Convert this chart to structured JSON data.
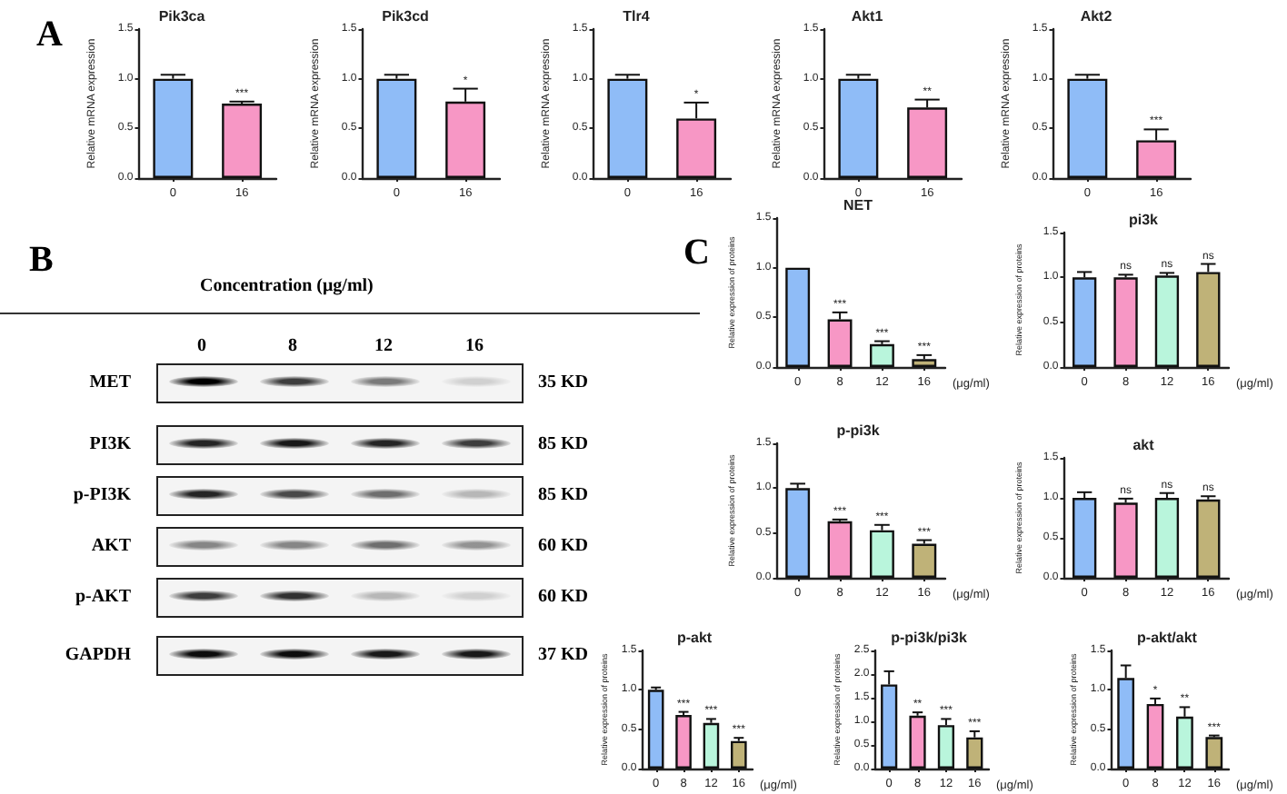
{
  "chart_data": [
    {
      "type": "bar",
      "title": "Pik3ca",
      "ylabel": "Relative mRNA expression",
      "categories": [
        "0",
        "16"
      ],
      "values": [
        1.0,
        0.75
      ],
      "colors": [
        "#8fbcf7",
        "#f797c5"
      ],
      "errors": [
        0.04,
        0.02
      ],
      "ylim": [
        0,
        1.5
      ],
      "yticks": [
        {
          "value": 0,
          "label": "0.0"
        },
        {
          "value": 0.5,
          "label": "0.5"
        },
        {
          "value": 1,
          "label": "1.0"
        },
        {
          "value": 1.5,
          "label": "1.5"
        }
      ],
      "annotations": [
        "A",
        {
          "text": "***",
          "x": "16",
          "y": 0.77
        }
      ]
    },
    {
      "type": "bar",
      "title": "Pik3cd",
      "ylabel": "Relative mRNA expression",
      "categories": [
        "0",
        "16"
      ],
      "values": [
        1.0,
        0.77
      ],
      "colors": [
        "#8fbcf7",
        "#f797c5"
      ],
      "errors": [
        0.04,
        0.13
      ],
      "ylim": [
        0,
        1.5
      ],
      "yticks": [
        {
          "value": 0,
          "label": "0.0"
        },
        {
          "value": 0.5,
          "label": "0.5"
        },
        {
          "value": 1,
          "label": "1.0"
        },
        {
          "value": 1.5,
          "label": "1.5"
        }
      ],
      "annotations": [
        {
          "text": "*",
          "x": "16",
          "y": 0.9
        }
      ]
    },
    {
      "type": "bar",
      "title": "Tlr4",
      "ylabel": "Relative mRNA expression",
      "categories": [
        "0",
        "16"
      ],
      "values": [
        1.0,
        0.6
      ],
      "colors": [
        "#8fbcf7",
        "#f797c5"
      ],
      "errors": [
        0.04,
        0.16
      ],
      "ylim": [
        0,
        1.5
      ],
      "yticks": [
        {
          "value": 0,
          "label": "0.0"
        },
        {
          "value": 0.5,
          "label": "0.5"
        },
        {
          "value": 1,
          "label": "1.0"
        },
        {
          "value": 1.5,
          "label": "1.5"
        }
      ],
      "annotations": [
        {
          "text": "*",
          "x": "16",
          "y": 0.76
        }
      ]
    },
    {
      "type": "bar",
      "title": "Akt1",
      "ylabel": "Relative mRNA expression",
      "categories": [
        "0",
        "16"
      ],
      "values": [
        1.0,
        0.71
      ],
      "colors": [
        "#8fbcf7",
        "#f797c5"
      ],
      "errors": [
        0.04,
        0.08
      ],
      "ylim": [
        0,
        1.5
      ],
      "yticks": [
        {
          "value": 0,
          "label": "0.0"
        },
        {
          "value": 0.5,
          "label": "0.5"
        },
        {
          "value": 1,
          "label": "1.0"
        },
        {
          "value": 1.5,
          "label": "1.5"
        }
      ],
      "annotations": [
        {
          "text": "**",
          "x": "16",
          "y": 0.79
        }
      ]
    },
    {
      "type": "bar",
      "title": "Akt2",
      "ylabel": "Relative mRNA expression",
      "categories": [
        "0",
        "16"
      ],
      "values": [
        1.0,
        0.38
      ],
      "colors": [
        "#8fbcf7",
        "#f797c5"
      ],
      "errors": [
        0.04,
        0.11
      ],
      "ylim": [
        0,
        1.5
      ],
      "yticks": [
        {
          "value": 0,
          "label": "0.0"
        },
        {
          "value": 0.5,
          "label": "0.5"
        },
        {
          "value": 1,
          "label": "1.0"
        },
        {
          "value": 1.5,
          "label": "1.5"
        }
      ],
      "annotations": [
        {
          "text": "***",
          "x": "16",
          "y": 0.49
        }
      ]
    },
    {
      "type": "bar",
      "title": "NET",
      "ylabel": "Relative expression of proteins",
      "xlabel": "(μg/ml)",
      "categories": [
        "0",
        "8",
        "12",
        "16"
      ],
      "values": [
        1.0,
        0.48,
        0.23,
        0.08
      ],
      "colors": [
        "#8fbcf7",
        "#f797c5",
        "#b9f5dc",
        "#bfb278"
      ],
      "errors": [
        null,
        0.07,
        0.03,
        0.04
      ],
      "ylim": [
        0,
        1.5
      ],
      "yticks": [
        {
          "value": 0,
          "label": "0.0"
        },
        {
          "value": 0.5,
          "label": "0.5"
        },
        {
          "value": 1,
          "label": "1.0"
        },
        {
          "value": 1.5,
          "label": "1.5"
        }
      ],
      "annotations": [
        "C",
        {
          "text": "***",
          "x": "8",
          "y": 0.55
        },
        {
          "text": "***",
          "x": "12",
          "y": 0.26
        },
        {
          "text": "***",
          "x": "16",
          "y": 0.12
        }
      ]
    },
    {
      "type": "bar",
      "title": "pi3k",
      "ylabel": "Relative expression of proteins",
      "xlabel": "(μg/ml)",
      "categories": [
        "0",
        "8",
        "12",
        "16"
      ],
      "values": [
        1.0,
        1.0,
        1.02,
        1.06
      ],
      "colors": [
        "#8fbcf7",
        "#f797c5",
        "#b9f5dc",
        "#bfb278"
      ],
      "errors": [
        0.06,
        0.03,
        0.03,
        0.09
      ],
      "ylim": [
        0,
        1.5
      ],
      "yticks": [
        {
          "value": 0,
          "label": "0.0"
        },
        {
          "value": 0.5,
          "label": "0.5"
        },
        {
          "value": 1,
          "label": "1.0"
        },
        {
          "value": 1.5,
          "label": "1.5"
        }
      ],
      "annotations": [
        {
          "text": "ns",
          "x": "8",
          "y": 1.03
        },
        {
          "text": "ns",
          "x": "12",
          "y": 1.05
        },
        {
          "text": "ns",
          "x": "16",
          "y": 1.15
        }
      ]
    },
    {
      "type": "bar",
      "title": "p-pi3k",
      "ylabel": "Relative expression of proteins",
      "xlabel": "(μg/ml)",
      "categories": [
        "0",
        "8",
        "12",
        "16"
      ],
      "values": [
        1.0,
        0.63,
        0.53,
        0.38
      ],
      "colors": [
        "#8fbcf7",
        "#f797c5",
        "#b9f5dc",
        "#bfb278"
      ],
      "errors": [
        0.05,
        0.02,
        0.06,
        0.04
      ],
      "ylim": [
        0,
        1.5
      ],
      "yticks": [
        {
          "value": 0,
          "label": "0.0"
        },
        {
          "value": 0.5,
          "label": "0.5"
        },
        {
          "value": 1,
          "label": "1.0"
        },
        {
          "value": 1.5,
          "label": "1.5"
        }
      ],
      "annotations": [
        {
          "text": "***",
          "x": "8",
          "y": 0.65
        },
        {
          "text": "***",
          "x": "12",
          "y": 0.59
        },
        {
          "text": "***",
          "x": "16",
          "y": 0.42
        }
      ]
    },
    {
      "type": "bar",
      "title": "akt",
      "ylabel": "Relative expression of proteins",
      "xlabel": "(μg/ml)",
      "categories": [
        "0",
        "8",
        "12",
        "16"
      ],
      "values": [
        1.0,
        0.94,
        1.0,
        0.98
      ],
      "colors": [
        "#8fbcf7",
        "#f797c5",
        "#b9f5dc",
        "#bfb278"
      ],
      "errors": [
        0.07,
        0.05,
        0.06,
        0.04
      ],
      "ylim": [
        0,
        1.5
      ],
      "yticks": [
        {
          "value": 0,
          "label": "0.0"
        },
        {
          "value": 0.5,
          "label": "0.5"
        },
        {
          "value": 1,
          "label": "1.0"
        },
        {
          "value": 1.5,
          "label": "1.5"
        }
      ],
      "annotations": [
        {
          "text": "ns",
          "x": "8",
          "y": 0.99
        },
        {
          "text": "ns",
          "x": "12",
          "y": 1.06
        },
        {
          "text": "ns",
          "x": "16",
          "y": 1.02
        }
      ]
    },
    {
      "type": "bar",
      "title": "p-akt",
      "ylabel": "Relative expression of proteins",
      "xlabel": "(μg/ml)",
      "categories": [
        "0",
        "8",
        "12",
        "16"
      ],
      "values": [
        1.0,
        0.68,
        0.58,
        0.35
      ],
      "colors": [
        "#8fbcf7",
        "#f797c5",
        "#b9f5dc",
        "#bfb278"
      ],
      "errors": [
        0.03,
        0.04,
        0.05,
        0.04
      ],
      "ylim": [
        0,
        1.5
      ],
      "yticks": [
        {
          "value": 0,
          "label": "0.0"
        },
        {
          "value": 0.5,
          "label": "0.5"
        },
        {
          "value": 1,
          "label": "1.0"
        },
        {
          "value": 1.5,
          "label": "1.5"
        }
      ],
      "annotations": [
        {
          "text": "***",
          "x": "8",
          "y": 0.72
        },
        {
          "text": "***",
          "x": "12",
          "y": 0.63
        },
        {
          "text": "***",
          "x": "16",
          "y": 0.39
        }
      ]
    },
    {
      "type": "bar",
      "title": "p-pi3k/pi3k",
      "ylabel": "Relative expression of proteins",
      "xlabel": "(μg/ml)",
      "categories": [
        "0",
        "8",
        "12",
        "16"
      ],
      "values": [
        1.78,
        1.12,
        0.92,
        0.66
      ],
      "colors": [
        "#8fbcf7",
        "#f797c5",
        "#b9f5dc",
        "#bfb278"
      ],
      "errors": [
        0.28,
        0.07,
        0.13,
        0.13
      ],
      "ylim": [
        0,
        2.5
      ],
      "yticks": [
        {
          "value": 0,
          "label": "0.0"
        },
        {
          "value": 0.5,
          "label": "0.5"
        },
        {
          "value": 1,
          "label": "1.0"
        },
        {
          "value": 1.5,
          "label": "1.5"
        },
        {
          "value": 2,
          "label": "2.0"
        },
        {
          "value": 2.5,
          "label": "2.5"
        }
      ],
      "annotations": [
        {
          "text": "**",
          "x": "8",
          "y": 1.19
        },
        {
          "text": "***",
          "x": "12",
          "y": 1.05
        },
        {
          "text": "***",
          "x": "16",
          "y": 0.79
        }
      ]
    },
    {
      "type": "bar",
      "title": "p-akt/akt",
      "ylabel": "Relative expression of proteins",
      "xlabel": "(μg/ml)",
      "categories": [
        "0",
        "8",
        "12",
        "16"
      ],
      "values": [
        1.15,
        0.82,
        0.66,
        0.4
      ],
      "colors": [
        "#8fbcf7",
        "#f797c5",
        "#b9f5dc",
        "#bfb278"
      ],
      "errors": [
        0.16,
        0.07,
        0.12,
        0.02
      ],
      "ylim": [
        0,
        1.5
      ],
      "yticks": [
        {
          "value": 0,
          "label": "0.0"
        },
        {
          "value": 0.5,
          "label": "0.5"
        },
        {
          "value": 1,
          "label": "1.0"
        },
        {
          "value": 1.5,
          "label": "1.5"
        }
      ],
      "annotations": [
        {
          "text": "*",
          "x": "8",
          "y": 0.89
        },
        {
          "text": "**",
          "x": "12",
          "y": 0.78
        },
        {
          "text": "***",
          "x": "16",
          "y": 0.42
        }
      ]
    },
    {
      "type": "other",
      "title": "Concentration (μg/ml)",
      "categories": [
        "0",
        "8",
        "12",
        "16"
      ],
      "y_categories": [
        "MET",
        "PI3K",
        "p-PI3K",
        "AKT",
        "p-AKT",
        "GAPDH"
      ],
      "y2_categories": [
        "35 KD",
        "85 KD",
        "85 KD",
        "60 KD",
        "60 KD",
        "37 KD"
      ],
      "annotations": [
        "B"
      ]
    }
  ]
}
